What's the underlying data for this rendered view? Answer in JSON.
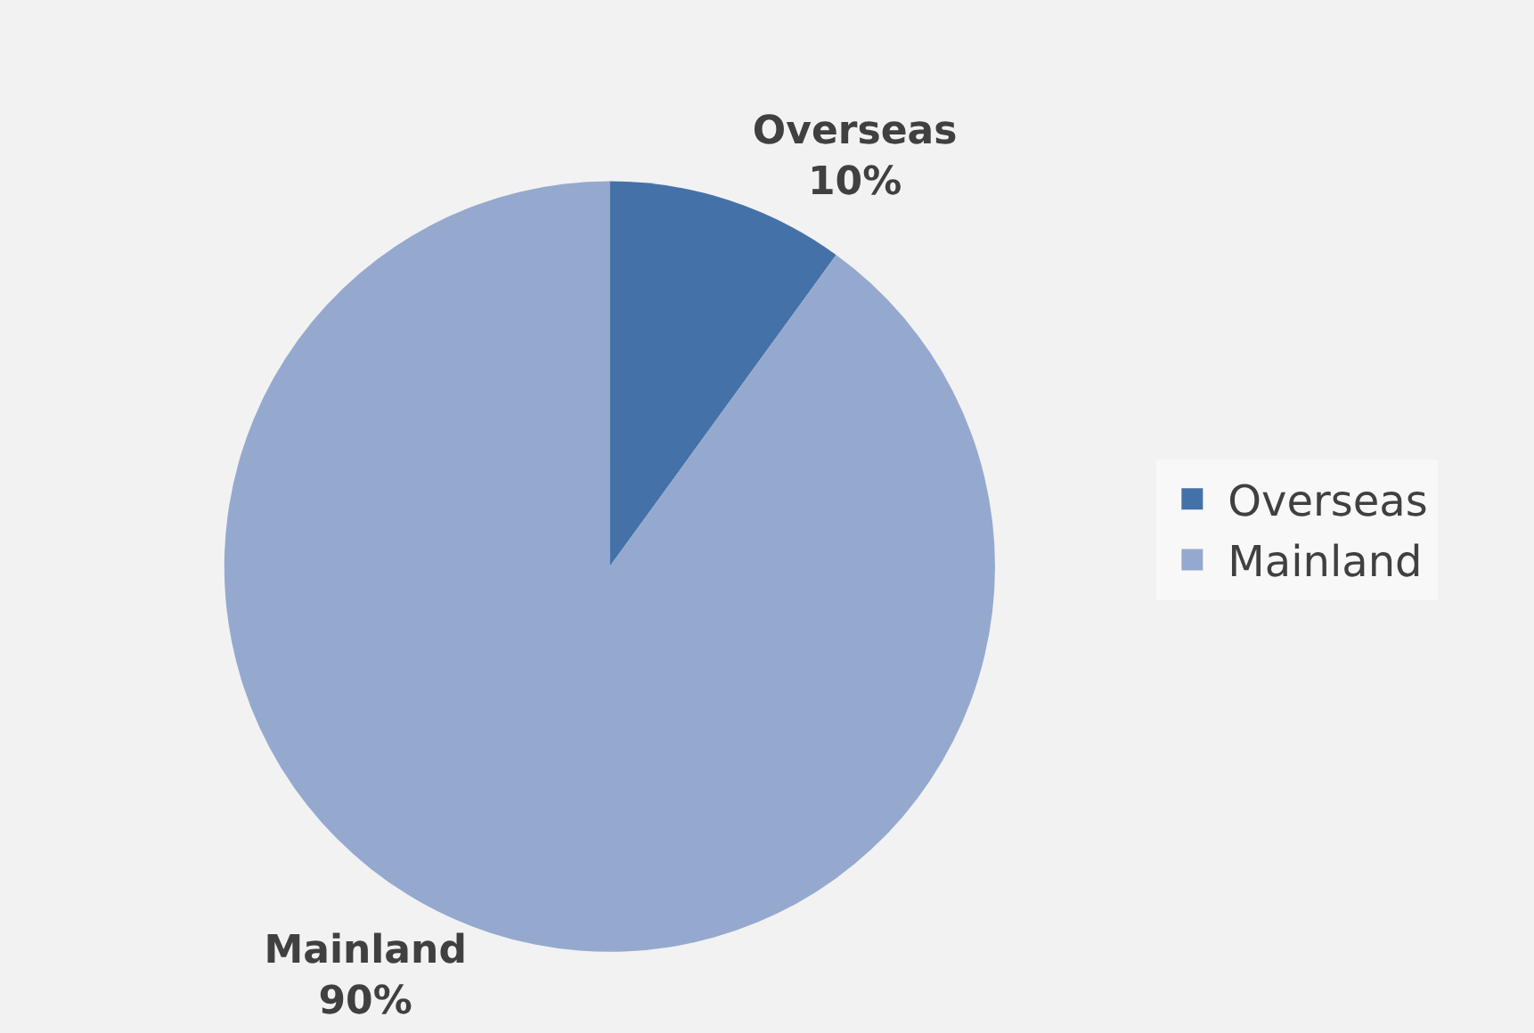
{
  "chart_data": {
    "type": "pie",
    "categories": [
      "Overseas",
      "Mainland"
    ],
    "values": [
      10,
      90
    ],
    "colors": [
      "#4472a8",
      "#95a9cf"
    ],
    "value_labels": [
      "10%",
      "90%"
    ],
    "legend": "right"
  }
}
